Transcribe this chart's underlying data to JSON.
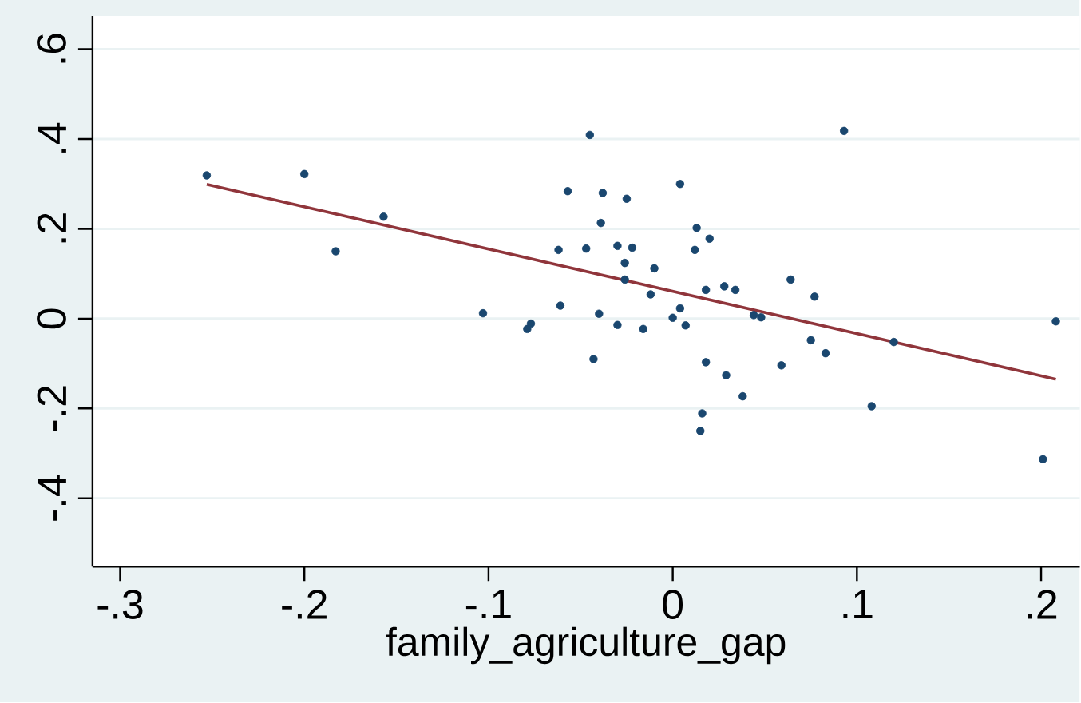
{
  "chart_data": {
    "type": "scatter",
    "xlabel": "family_agriculture_gap",
    "xlim": [
      -0.315,
      0.221
    ],
    "ylim": [
      -0.552,
      0.674
    ],
    "xticks": [
      {
        "value": -0.3,
        "label": "-.3"
      },
      {
        "value": -0.2,
        "label": "-.2"
      },
      {
        "value": -0.1,
        "label": "-.1"
      },
      0,
      {
        "value": 0.1,
        "label": ".1"
      },
      {
        "value": 0.2,
        "label": ".2"
      }
    ],
    "yticks": [
      {
        "value": -0.4,
        "label": "-.4"
      },
      {
        "value": -0.2,
        "label": "-.2"
      },
      0,
      {
        "value": 0.2,
        "label": ".2"
      },
      {
        "value": 0.4,
        "label": ".4"
      },
      {
        "value": 0.6,
        "label": ".6"
      }
    ],
    "grid": "y",
    "marker": "circle",
    "series": [
      {
        "color": "#1a476f",
        "x": [
          -0.253,
          -0.2,
          -0.183,
          -0.157,
          -0.103,
          -0.079,
          -0.077,
          -0.062,
          -0.061,
          -0.057,
          -0.047,
          -0.045,
          -0.043,
          -0.04,
          -0.039,
          -0.038,
          -0.03,
          -0.03,
          -0.026,
          -0.025,
          -0.026,
          -0.022,
          -0.016,
          -0.012,
          -0.01,
          0.0,
          0.004,
          0.004,
          0.007,
          0.012,
          0.013,
          0.018,
          0.018,
          0.016,
          0.015,
          0.02,
          0.028,
          0.029,
          0.034,
          0.038,
          0.044,
          0.048,
          0.059,
          0.064,
          0.075,
          0.077,
          0.083,
          0.093,
          0.108,
          0.12,
          0.201,
          0.208
        ],
        "values": [
          0.319,
          0.322,
          0.15,
          0.227,
          0.012,
          -0.023,
          -0.011,
          0.153,
          0.029,
          0.284,
          0.156,
          0.409,
          -0.09,
          0.011,
          0.213,
          0.28,
          -0.014,
          0.162,
          0.124,
          0.267,
          0.087,
          0.158,
          -0.023,
          0.054,
          0.112,
          0.002,
          0.023,
          0.3,
          -0.015,
          0.153,
          0.202,
          0.064,
          -0.097,
          -0.211,
          -0.25,
          0.178,
          0.072,
          -0.126,
          0.064,
          -0.173,
          0.008,
          0.003,
          -0.104,
          0.087,
          -0.048,
          0.049,
          -0.077,
          0.418,
          -0.195,
          -0.052,
          -0.313,
          -0.006
        ]
      },
      {
        "type": "line",
        "color": "#90353b",
        "marker": "none",
        "x": [
          -0.253,
          0.208
        ],
        "values": [
          0.299,
          -0.135
        ]
      }
    ]
  }
}
